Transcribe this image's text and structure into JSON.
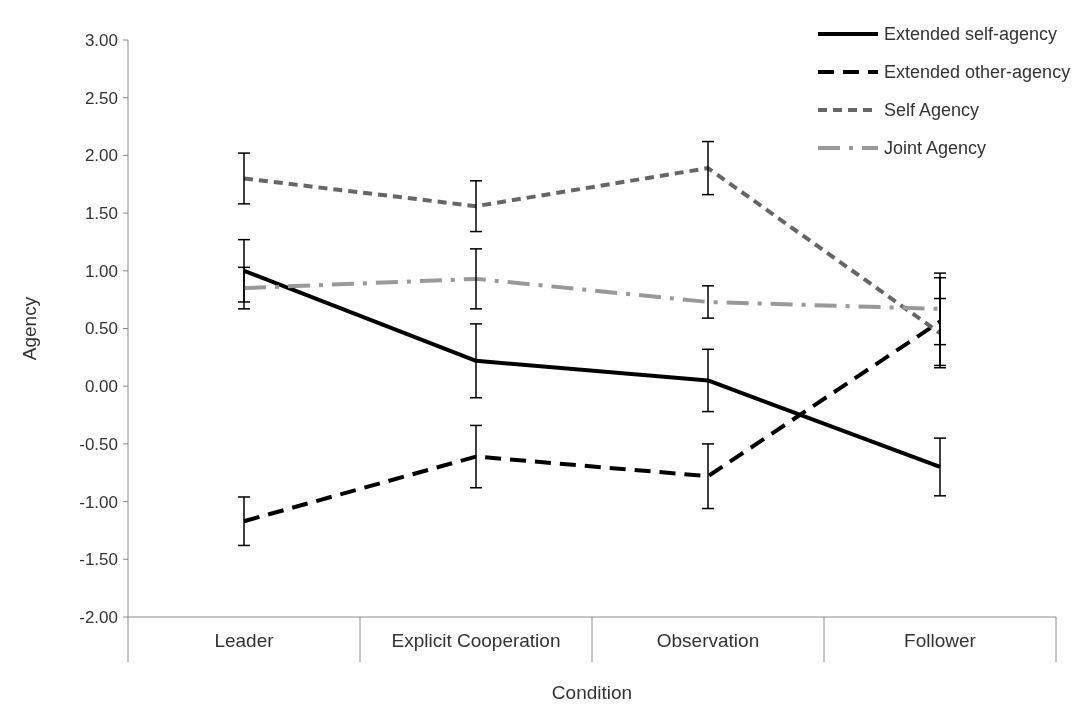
{
  "chart_data": {
    "type": "line",
    "xlabel": "Condition",
    "ylabel": "Agency",
    "categories": [
      "Leader",
      "Explicit Cooperation",
      "Observation",
      "Follower"
    ],
    "ylim": [
      -2,
      3
    ],
    "yticks": [
      {
        "value": -2,
        "label": "-2.00"
      },
      {
        "value": -1.5,
        "label": "-1.50"
      },
      {
        "value": -1,
        "label": "-1.00"
      },
      {
        "value": -0.5,
        "label": "-0.50"
      },
      {
        "value": 0,
        "label": "0.00"
      },
      {
        "value": 0.5,
        "label": "0.50"
      },
      {
        "value": 1,
        "label": "1.00"
      },
      {
        "value": 1.5,
        "label": "1.50"
      },
      {
        "value": 2,
        "label": "2.00"
      },
      {
        "value": 2.5,
        "label": "2.50"
      },
      {
        "value": 3,
        "label": "3.00"
      }
    ],
    "grid": false,
    "legend": "top right",
    "marker": "none",
    "series": [
      {
        "name": "Extended self-agency",
        "color": "#000000",
        "line_style": "solid",
        "values": [
          1.0,
          0.22,
          0.05,
          -0.7
        ],
        "errors": [
          0.27,
          0.32,
          0.27,
          0.25
        ]
      },
      {
        "name": "Extended other-agency",
        "color": "#000000",
        "line_style": "dashed",
        "values": [
          -1.17,
          -0.61,
          -0.78,
          0.56
        ],
        "errors": [
          0.21,
          0.27,
          0.28,
          0.38
        ]
      },
      {
        "name": "Self Agency",
        "color": "#666666",
        "line_style": "dotted",
        "values": [
          1.8,
          1.56,
          1.89,
          0.46
        ],
        "errors": [
          0.22,
          0.22,
          0.23,
          0.3
        ]
      },
      {
        "name": "Joint Agency",
        "color": "#999999",
        "line_style": "dashdot",
        "values": [
          0.85,
          0.93,
          0.73,
          0.67
        ],
        "errors": [
          0.18,
          0.26,
          0.14,
          0.31
        ]
      }
    ]
  }
}
